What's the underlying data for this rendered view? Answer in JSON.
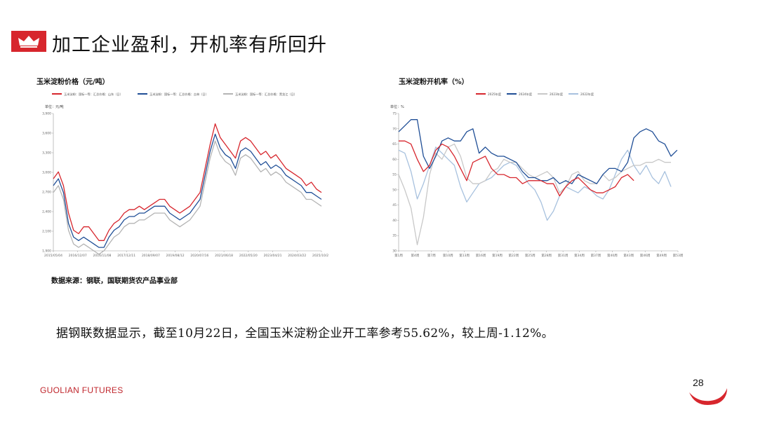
{
  "slide": {
    "title": "加工企业盈利，开机率有所回升",
    "source": "数据来源：钢联，国联期货农产品事业部",
    "body": "据钢联数据显示，截至10月22日，全国玉米淀粉企业开工率参考55.62%，较上周-1.12%。",
    "brand": "GUOLIAN FUTURES",
    "page_number": "28",
    "accent_color": "#d7262d",
    "icon": "crown-icon"
  },
  "chart_data": [
    {
      "type": "line",
      "title": "玉米淀粉价格（元/吨）",
      "unit_label": "单位：元/吨",
      "ylim": [
        1900,
        3900
      ],
      "y_ticks": [
        "1,900",
        "2,100",
        "2,400",
        "2,700",
        "3,000",
        "3,300",
        "3,600",
        "3,900"
      ],
      "x_ticks": [
        "2015/05/04",
        "2016/12/07",
        "2016/11/08",
        "2017/12/11",
        "2018/09/07",
        "2019/08/12",
        "2020/07/16",
        "2021/06/18",
        "2022/05/20",
        "2023/04/21",
        "2024/03/22",
        "2025/10/24"
      ],
      "legend_position": "top",
      "series": [
        {
          "name": "玉米淀粉：国标一等：汇总价格：山东（日）",
          "color": "#d7262d",
          "values": [
            2950,
            3050,
            2850,
            2450,
            2200,
            2150,
            2250,
            2250,
            2150,
            2050,
            2050,
            2200,
            2300,
            2350,
            2450,
            2500,
            2500,
            2550,
            2500,
            2550,
            2600,
            2650,
            2650,
            2550,
            2500,
            2450,
            2500,
            2550,
            2650,
            2750,
            3100,
            3450,
            3750,
            3550,
            3450,
            3350,
            3250,
            3500,
            3550,
            3500,
            3400,
            3300,
            3350,
            3250,
            3300,
            3200,
            3100,
            3050,
            3000,
            2950,
            2850,
            2900,
            2800,
            2750
          ]
        },
        {
          "name": "玉米淀粉：国标一等：汇总价格：吉林（日）",
          "color": "#1f4e96",
          "values": [
            2850,
            2950,
            2750,
            2300,
            2100,
            2050,
            2100,
            2050,
            2000,
            1950,
            1950,
            2100,
            2200,
            2250,
            2350,
            2400,
            2400,
            2450,
            2450,
            2500,
            2550,
            2550,
            2550,
            2450,
            2400,
            2350,
            2400,
            2450,
            2550,
            2650,
            3000,
            3350,
            3600,
            3400,
            3300,
            3250,
            3100,
            3350,
            3400,
            3350,
            3250,
            3150,
            3200,
            3100,
            3150,
            3100,
            3000,
            2950,
            2900,
            2850,
            2750,
            2750,
            2700,
            2650
          ]
        },
        {
          "name": "玉米淀粉：国标一等：汇总价格：黑龙江（日）",
          "color": "#b4b4b4",
          "values": [
            2750,
            2850,
            2650,
            2200,
            2000,
            1950,
            2000,
            1950,
            1900,
            1850,
            1900,
            2000,
            2100,
            2150,
            2250,
            2300,
            2300,
            2350,
            2350,
            2400,
            2450,
            2450,
            2450,
            2350,
            2300,
            2250,
            2300,
            2350,
            2450,
            2550,
            2900,
            3250,
            3500,
            3300,
            3200,
            3150,
            3000,
            3250,
            3300,
            3250,
            3150,
            3050,
            3100,
            3000,
            3050,
            3000,
            2900,
            2850,
            2800,
            2750,
            2650,
            2650,
            2600,
            2550
          ]
        }
      ]
    },
    {
      "type": "line",
      "title": "玉米淀粉开机率（%）",
      "unit_label": "单位：%",
      "ylim": [
        30,
        75
      ],
      "y_ticks": [
        "30",
        "35",
        "40",
        "45",
        "50",
        "55",
        "60",
        "65",
        "70",
        "75"
      ],
      "x_ticks": [
        "第1周",
        "第4周",
        "第7周",
        "第10周",
        "第13周",
        "第16周",
        "第19周",
        "第22周",
        "第25周",
        "第28周",
        "第31周",
        "第34周",
        "第37周",
        "第40周",
        "第43周",
        "第46周",
        "第49周",
        "第53周"
      ],
      "legend_position": "top",
      "series": [
        {
          "name": "2025年度",
          "color": "#d7262d",
          "values": [
            66,
            66,
            65,
            60,
            56,
            58,
            63,
            65,
            64,
            61,
            57,
            53,
            59,
            60,
            61,
            57,
            55,
            55,
            54,
            54,
            52,
            53,
            53,
            53,
            52,
            52,
            48,
            51,
            53,
            54,
            52,
            50,
            49,
            49,
            50,
            51,
            54,
            55,
            53
          ]
        },
        {
          "name": "2024年度",
          "color": "#1f4e96",
          "values": [
            69,
            71,
            73,
            73,
            61,
            57,
            61,
            66,
            67,
            66,
            66,
            69,
            70,
            62,
            64,
            62,
            61,
            61,
            60,
            59,
            56,
            54,
            54,
            53,
            53,
            54,
            52,
            53,
            52,
            55,
            54,
            53,
            52,
            55,
            57,
            57,
            56,
            59,
            67,
            69,
            70,
            69,
            66,
            65,
            61,
            63
          ]
        },
        {
          "name": "2023年度",
          "color": "#c8c8c8",
          "values": [
            55,
            50,
            44,
            32,
            41,
            55,
            62,
            60,
            64,
            65,
            61,
            54,
            52,
            52,
            53,
            56,
            57,
            60,
            59,
            59,
            57,
            55,
            54,
            55,
            56,
            54,
            49,
            51,
            55,
            56,
            53,
            52,
            52,
            55,
            53,
            54,
            56,
            57,
            58,
            58,
            59,
            59,
            60,
            59,
            59
          ]
        },
        {
          "name": "2022年度",
          "color": "#a7c1de",
          "values": [
            63,
            62,
            56,
            47,
            52,
            58,
            64,
            62,
            60,
            58,
            51,
            46,
            49,
            52,
            53,
            54,
            56,
            58,
            59,
            58,
            55,
            52,
            50,
            46,
            40,
            43,
            48,
            51,
            50,
            49,
            51,
            50,
            48,
            47,
            50,
            55,
            60,
            63,
            58,
            55,
            58,
            54,
            52,
            56,
            51
          ]
        }
      ]
    }
  ]
}
